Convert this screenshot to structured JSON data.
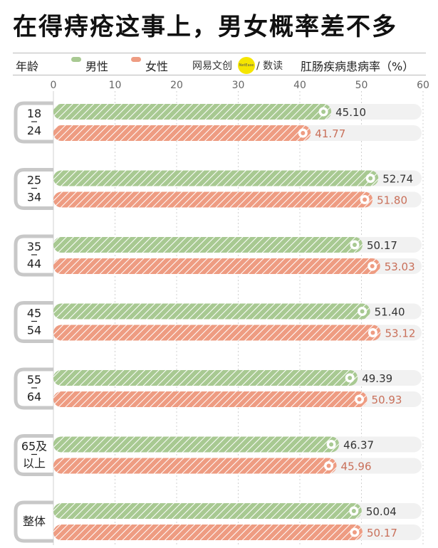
{
  "title": "在得痔疮这事上，男女概率差不多",
  "header": {
    "column_label": "年龄",
    "source": "网易文创",
    "source_logo_text": "NetEase",
    "source_suffix": "/ 数读",
    "ylabel": "肛肠疾病患病率（%）"
  },
  "colors": {
    "male": "#a8c992",
    "female": "#ee9c82",
    "male_text": "#333333",
    "female_text": "#c9705a",
    "track": "#f1f1f1"
  },
  "chart_data": {
    "type": "bar",
    "orientation": "horizontal",
    "title": "在得痔疮这事上，男女概率差不多",
    "xlabel": "",
    "ylabel": "肛肠疾病患病率（%）",
    "xlim": [
      0,
      60
    ],
    "ticks": [
      "0",
      "10",
      "20",
      "30",
      "40",
      "50",
      "60"
    ],
    "tick_values": [
      0,
      10,
      20,
      30,
      40,
      50,
      60
    ],
    "categories": [
      {
        "line1": "18",
        "line2": "24"
      },
      {
        "line1": "25",
        "line2": "34"
      },
      {
        "line1": "35",
        "line2": "44"
      },
      {
        "line1": "45",
        "line2": "54"
      },
      {
        "line1": "55",
        "line2": "64"
      },
      {
        "line1": "65及",
        "line2": "以上"
      },
      {
        "line1": "整体",
        "line2": ""
      }
    ],
    "series": [
      {
        "name": "男性",
        "values": [
          45.1,
          52.74,
          50.17,
          51.4,
          49.39,
          46.37,
          50.04
        ],
        "labels": [
          "45.10",
          "52.74",
          "50.17",
          "51.40",
          "49.39",
          "46.37",
          "50.04"
        ]
      },
      {
        "name": "女性",
        "values": [
          41.77,
          51.8,
          53.03,
          53.12,
          50.93,
          45.96,
          50.17
        ],
        "labels": [
          "41.77",
          "51.80",
          "53.03",
          "53.12",
          "50.93",
          "45.96",
          "50.17"
        ]
      }
    ],
    "legend": "top",
    "grid": true
  }
}
